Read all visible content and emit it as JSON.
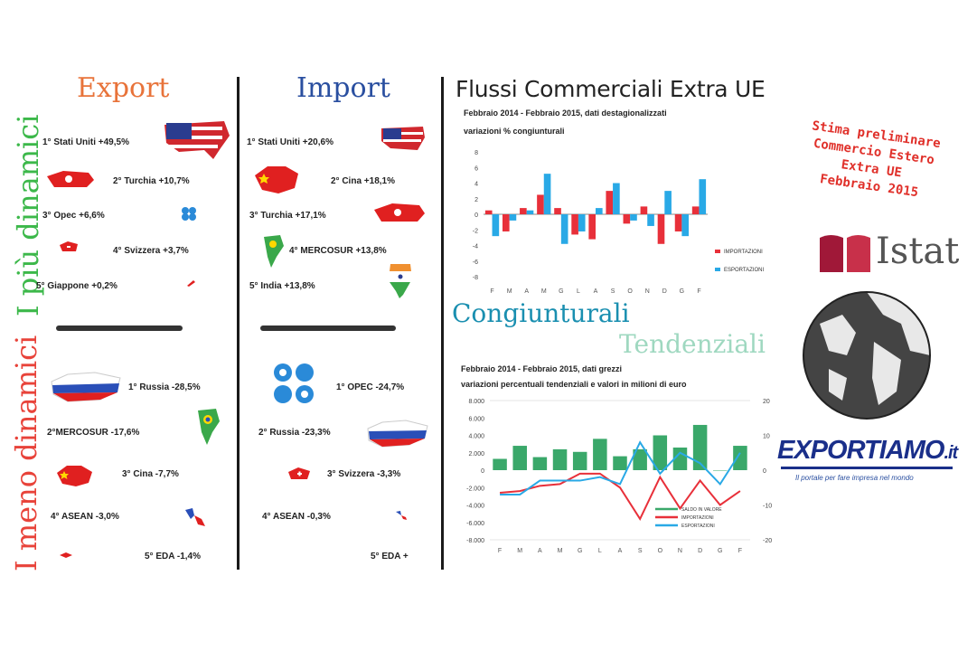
{
  "headings": {
    "export": "Export",
    "import": "Import",
    "main_title": "Flussi Commerciali Extra UE",
    "side_top": "I più dinamici",
    "side_bottom": "I meno dinamici"
  },
  "export_top": [
    {
      "label": "1° Stati Uniti +49,5%"
    },
    {
      "label": "2° Turchia +10,7%"
    },
    {
      "label": "3° Opec +6,6%"
    },
    {
      "label": "4° Svizzera +3,7%"
    },
    {
      "label": "5° Giappone +0,2%"
    }
  ],
  "import_top": [
    {
      "label": "1° Stati Uniti +20,6%"
    },
    {
      "label": "2° Cina +18,1%"
    },
    {
      "label": "3° Turchia +17,1%"
    },
    {
      "label": "4° MERCOSUR +13,8%"
    },
    {
      "label": "5° India +13,8%"
    }
  ],
  "export_bottom": [
    {
      "label": "1° Russia -28,5%"
    },
    {
      "label": "2°MERCOSUR -17,6%"
    },
    {
      "label": "3° Cina -7,7%"
    },
    {
      "label": "4° ASEAN -3,0%"
    },
    {
      "label": "5° EDA -1,4%"
    }
  ],
  "import_bottom": [
    {
      "label": "1° OPEC -24,7%"
    },
    {
      "label": "2° Russia -23,3%"
    },
    {
      "label": "3° Svizzera -3,3%"
    },
    {
      "label": "4° ASEAN -0,3%"
    },
    {
      "label": "5° EDA +"
    }
  ],
  "chart1_subtitle_line1": "Febbraio 2014 - Febbraio 2015, dati destagionalizzati",
  "chart1_subtitle_line2": "variazioni % congiunturali",
  "congiunturali": "Congiunturali",
  "tendenziali": "Tendenziali",
  "chart2_subtitle_line1": "Febbraio 2014 - Febbraio 2015, dati grezzi",
  "chart2_subtitle_line2": "variazioni percentuali tendenziali e valori in milioni di euro",
  "stamp": [
    "Stima preliminare",
    "Commercio Estero",
    "Extra UE",
    "Febbraio 2015"
  ],
  "istat_label": "Istat",
  "exportiamo": {
    "main": "EXPORTIAMO",
    "suffix": ".it",
    "tagline": "Il portale per fare impresa nel mondo"
  },
  "colors": {
    "export_head": "#e8733a",
    "import_head": "#2a4fa0",
    "green_side": "#3cb84a",
    "red_side": "#e8433a",
    "import_series": "#e8303a",
    "export_series": "#29a9e6",
    "balance": "#3aa86a",
    "title_cyan": "#1a8fb0"
  },
  "chart_data": [
    {
      "type": "bar",
      "categories": [
        "F",
        "M",
        "A",
        "M",
        "G",
        "L",
        "A",
        "S",
        "O",
        "N",
        "D",
        "G",
        "F"
      ],
      "ylim": [
        -8,
        8
      ],
      "yticks": [
        -8,
        -6,
        -4,
        -2,
        0,
        2,
        4,
        6,
        8
      ],
      "series": [
        {
          "name": "IMPORTAZIONI",
          "values": [
            0.5,
            -2.2,
            0.8,
            2.5,
            0.8,
            -2.6,
            -3.2,
            3.0,
            -1.2,
            1.0,
            -3.8,
            -2.2,
            1.0
          ]
        },
        {
          "name": "ESPORTAZIONI",
          "values": [
            -2.8,
            -0.8,
            0.5,
            5.2,
            -3.8,
            -2.2,
            0.8,
            4.0,
            -0.8,
            -1.5,
            3.0,
            -2.8,
            4.5
          ]
        }
      ],
      "legend": "right"
    },
    {
      "type": "bar",
      "categories": [
        "F",
        "M",
        "A",
        "M",
        "G",
        "L",
        "A",
        "S",
        "O",
        "N",
        "D",
        "G",
        "F"
      ],
      "ylim": [
        -8000,
        8000
      ],
      "yticks_left": [
        "8.000",
        "6.000",
        "4.000",
        "2.000",
        "0",
        "-2.000",
        "-4.000",
        "-6.000",
        "-8.000"
      ],
      "y2lim": [
        -20,
        20
      ],
      "yticks_right": [
        "20",
        "10",
        "0",
        "-10",
        "-20"
      ],
      "series": [
        {
          "name": "SALDO IN VALORE",
          "kind": "bar",
          "axis": "left",
          "values": [
            1300,
            2800,
            1500,
            2400,
            2100,
            3600,
            1600,
            2400,
            4000,
            2600,
            5200,
            0,
            2800
          ]
        },
        {
          "name": "IMPORTAZIONI",
          "kind": "line",
          "axis": "right",
          "values": [
            -6.5,
            -6,
            -4.5,
            -4,
            -1,
            -1,
            -5,
            -14,
            -2,
            -11,
            -3,
            -10,
            -6
          ]
        },
        {
          "name": "ESPORTAZIONI",
          "kind": "line",
          "axis": "right",
          "values": [
            -7,
            -7,
            -3,
            -3,
            -3,
            -2,
            -4,
            8,
            -1,
            5,
            2,
            -4,
            5
          ]
        }
      ],
      "legend": "bottom-right"
    }
  ]
}
